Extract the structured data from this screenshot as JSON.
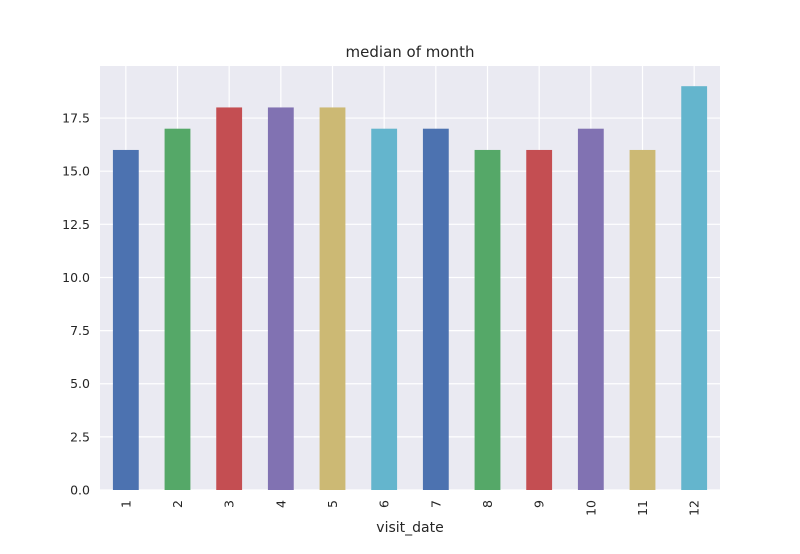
{
  "chart_data": {
    "type": "bar",
    "title": "median of month",
    "xlabel": "visit_date",
    "ylabel": "",
    "categories": [
      "1",
      "2",
      "3",
      "4",
      "5",
      "6",
      "7",
      "8",
      "9",
      "10",
      "11",
      "12"
    ],
    "values": [
      16,
      17,
      18,
      18,
      18,
      17,
      17,
      16,
      16,
      17,
      16,
      19
    ],
    "ylim": [
      0,
      19.95
    ],
    "yticks": [
      "0.0",
      "2.5",
      "5.0",
      "7.5",
      "10.0",
      "12.5",
      "15.0",
      "17.5"
    ],
    "grid": true,
    "legend": "none",
    "x_tick_rotation": "vertical",
    "colors": [
      "#4c72b0",
      "#55a868",
      "#c44e52",
      "#8172b2",
      "#ccb974",
      "#64b5cd"
    ],
    "plot_background": "#eaeaf2",
    "grid_color": "#ffffff"
  }
}
